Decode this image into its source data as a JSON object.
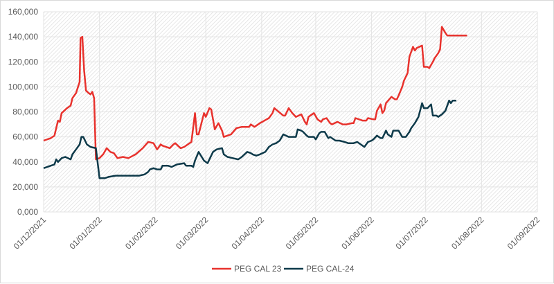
{
  "chart_data": {
    "type": "line",
    "title": "",
    "xlabel": "",
    "ylabel": "",
    "ylim": [
      0,
      160000
    ],
    "y_ticks": [
      "0,000",
      "20,000",
      "40,000",
      "60,000",
      "80,000",
      "100,000",
      "120,000",
      "140,000",
      "160,000"
    ],
    "y_tick_values": [
      0,
      20000,
      40000,
      60000,
      80000,
      100000,
      120000,
      140000,
      160000
    ],
    "x_ticks": [
      "01/12/2021",
      "01/01/2022",
      "01/02/2022",
      "01/03/2022",
      "01/04/2022",
      "01/05/2022",
      "01/06/2022",
      "01/07/2022",
      "01/08/2022",
      "01/09/2022"
    ],
    "x_tick_days": [
      0,
      31,
      62,
      90,
      121,
      151,
      182,
      212,
      243,
      274
    ],
    "x_unit": "days since 01/12/2021",
    "grid": true,
    "legend_position": "bottom",
    "series": [
      {
        "name": "PEG CAL 23",
        "color": "#e8322d",
        "x": [
          0,
          4,
          6,
          8,
          9,
          10,
          13,
          15,
          16,
          18,
          20,
          20.5,
          21.5,
          22.5,
          23.5,
          25,
          26,
          27,
          28,
          29,
          31,
          33,
          35,
          37,
          39,
          41,
          44,
          47,
          51,
          55,
          58,
          61,
          63,
          65,
          66,
          70,
          72,
          73,
          76,
          78,
          82,
          84,
          85,
          86,
          89,
          90,
          92,
          93,
          95,
          97,
          99,
          100,
          104,
          107,
          110,
          114,
          115,
          117,
          120,
          125,
          127,
          128,
          133,
          134,
          136,
          138,
          140,
          143,
          145,
          146,
          147,
          150,
          152,
          154,
          155,
          157,
          159,
          160,
          163,
          166,
          168,
          171,
          172,
          173,
          177,
          179,
          180,
          183,
          184,
          185,
          187,
          188,
          189,
          190,
          193,
          195,
          196,
          197,
          199,
          200,
          202,
          203,
          205,
          206,
          207,
          210,
          211,
          213,
          214,
          216,
          217,
          219,
          220,
          221,
          223,
          224,
          225,
          226,
          228,
          230,
          232,
          233,
          235
        ],
        "values": [
          57000,
          59000,
          61000,
          73000,
          72000,
          79000,
          83000,
          85000,
          91000,
          95000,
          104000,
          139000,
          140000,
          113000,
          97000,
          95000,
          94000,
          96000,
          91000,
          42000,
          43000,
          46000,
          51000,
          48000,
          47000,
          43000,
          44000,
          43000,
          46000,
          51000,
          56000,
          55000,
          50000,
          54000,
          53000,
          51000,
          54000,
          55000,
          51000,
          52000,
          56000,
          79000,
          62000,
          62000,
          79000,
          76000,
          83000,
          82000,
          66000,
          71000,
          65000,
          60000,
          62000,
          67000,
          68000,
          68000,
          70000,
          68000,
          71000,
          75000,
          79000,
          83000,
          77000,
          77000,
          83000,
          79000,
          76000,
          78000,
          72000,
          70000,
          76000,
          79000,
          74000,
          72000,
          74000,
          75000,
          71000,
          70000,
          72000,
          70000,
          70000,
          71000,
          71000,
          75000,
          73000,
          73000,
          75000,
          74000,
          74000,
          81000,
          86000,
          79000,
          81000,
          87000,
          92000,
          90000,
          90000,
          93000,
          100000,
          105000,
          111000,
          124000,
          132000,
          129000,
          131000,
          133000,
          116000,
          116000,
          115000,
          120000,
          123000,
          127000,
          130000,
          148000,
          143000,
          141000,
          141000,
          141000,
          141000,
          141000,
          141000,
          141000,
          141000
        ]
      },
      {
        "name": "PEG CAL-24",
        "color": "#0e3a4a",
        "x": [
          0,
          4,
          6,
          7,
          8,
          10,
          12,
          15,
          16,
          18,
          20,
          21,
          22,
          24,
          26,
          29,
          31,
          34,
          36,
          40,
          44,
          49,
          53,
          56,
          58,
          59,
          61,
          63,
          65,
          66,
          69,
          71,
          74,
          78,
          79,
          82,
          83,
          84,
          86,
          89,
          91,
          94,
          96,
          99,
          100,
          102,
          105,
          108,
          110,
          113,
          115,
          116,
          118,
          120,
          123,
          125,
          127,
          129,
          131,
          133,
          136,
          140,
          141,
          143,
          144,
          146,
          147,
          150,
          151,
          153,
          154,
          156,
          158,
          159,
          162,
          164,
          167,
          169,
          171,
          172,
          174,
          176,
          178,
          180,
          182,
          183,
          185,
          187,
          188,
          190,
          191,
          193,
          194,
          197,
          199,
          201,
          203,
          204,
          206,
          208,
          210,
          211,
          213,
          215,
          216,
          218,
          219,
          221,
          223,
          225,
          226,
          227,
          229
        ],
        "values": [
          35000,
          37000,
          38000,
          42000,
          40000,
          43000,
          44000,
          42000,
          46000,
          50000,
          54000,
          60000,
          60000,
          54000,
          52000,
          51000,
          27000,
          27000,
          28000,
          29000,
          29000,
          29000,
          29000,
          30000,
          32000,
          34000,
          35000,
          34000,
          34000,
          37000,
          37000,
          36000,
          38000,
          39000,
          37000,
          37000,
          36000,
          41000,
          48000,
          41000,
          39000,
          48000,
          50000,
          51000,
          46000,
          44000,
          43000,
          42000,
          44000,
          48000,
          47000,
          46000,
          45000,
          46000,
          48000,
          52000,
          54000,
          55000,
          57000,
          62000,
          60000,
          60000,
          66000,
          65000,
          64000,
          61000,
          60000,
          60000,
          58000,
          63000,
          64000,
          64000,
          59000,
          60000,
          57000,
          57000,
          56000,
          55000,
          55000,
          55000,
          56000,
          54000,
          52000,
          56000,
          57000,
          58000,
          61000,
          59000,
          59000,
          65000,
          62000,
          60000,
          65000,
          65000,
          60000,
          60000,
          64000,
          67000,
          71000,
          76000,
          87000,
          83000,
          83000,
          86000,
          77000,
          77000,
          76000,
          78000,
          81000,
          89000,
          87000,
          89000,
          89000
        ]
      }
    ]
  },
  "legend": {
    "items": [
      {
        "label": "PEG CAL 23",
        "color": "#e8322d"
      },
      {
        "label": "PEG CAL-24",
        "color": "#0e3a4a"
      }
    ]
  },
  "colors": {
    "grid": "#e3e3e3",
    "hatch": "#e0e0e0",
    "axis_text": "#595959",
    "frame": "#d9d9d9"
  }
}
